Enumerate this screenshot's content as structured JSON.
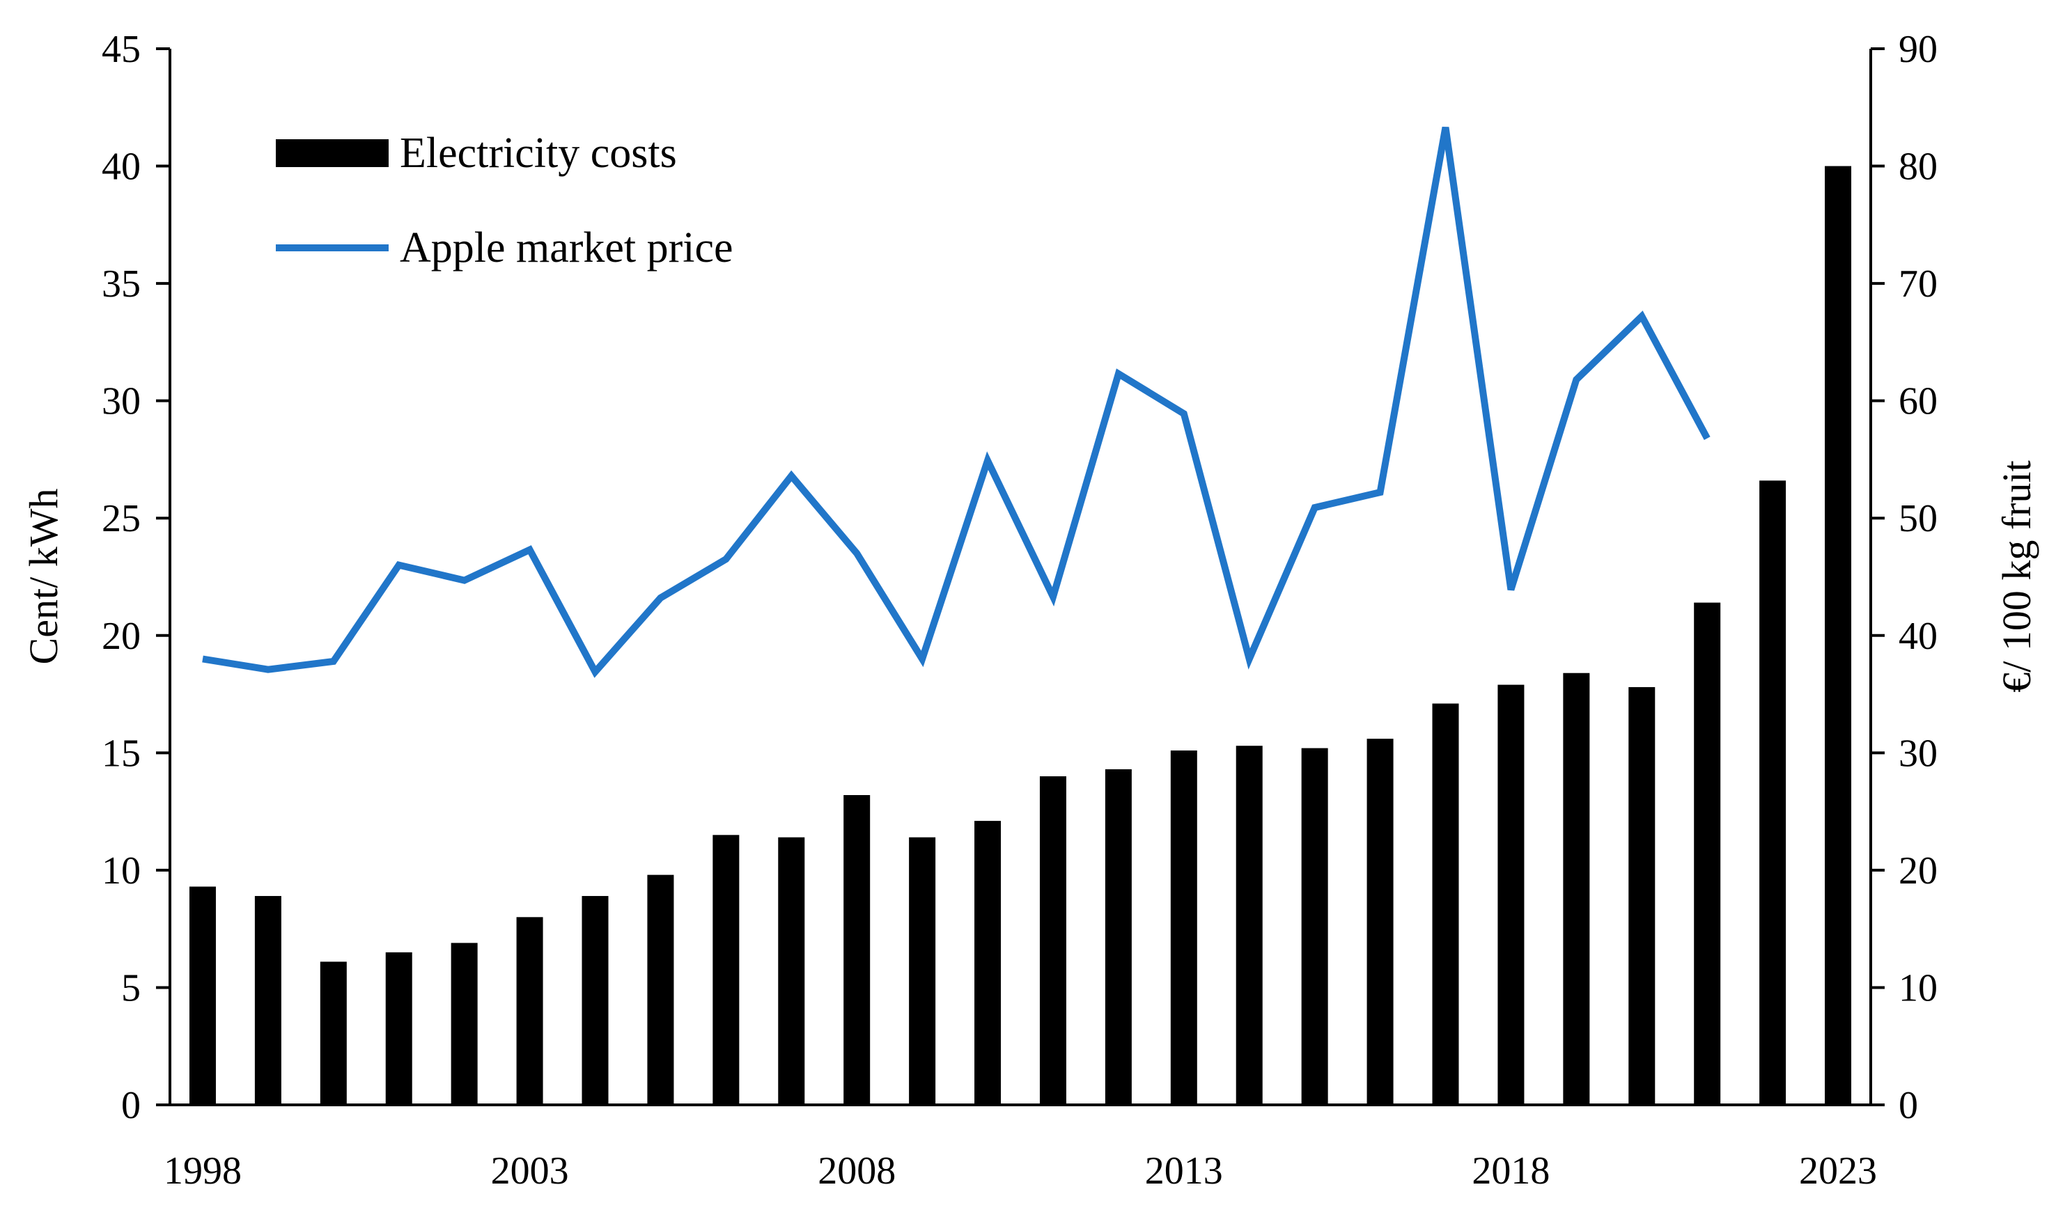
{
  "chart_data": {
    "type": "bar",
    "x": [
      1998,
      1999,
      2000,
      2001,
      2002,
      2003,
      2004,
      2005,
      2006,
      2007,
      2008,
      2009,
      2010,
      2011,
      2012,
      2013,
      2014,
      2015,
      2016,
      2017,
      2018,
      2019,
      2020,
      2021,
      2022,
      2023
    ],
    "x_tick_labels": [
      "1998",
      "2003",
      "2008",
      "2013",
      "2018",
      "2023"
    ],
    "x_tick_values": [
      1998,
      2003,
      2008,
      2013,
      2018,
      2023
    ],
    "ylabel": "Cent/ kWh",
    "ylabel_right": "€/ 100 kg fruit",
    "ylim": [
      0,
      45
    ],
    "ylim_right": [
      0,
      90
    ],
    "y_ticks": [
      0,
      5,
      10,
      15,
      20,
      25,
      30,
      35,
      40,
      45
    ],
    "y_ticks_right": [
      0,
      10,
      20,
      30,
      40,
      50,
      60,
      70,
      80,
      90
    ],
    "legend_position": "top-left",
    "grid": false,
    "series": [
      {
        "name": "Electricity costs",
        "type": "bar",
        "axis": "left",
        "color": "#000000",
        "values": [
          9.3,
          8.9,
          6.1,
          6.5,
          6.9,
          8.0,
          8.9,
          9.8,
          11.5,
          11.4,
          13.2,
          11.4,
          12.1,
          14.0,
          14.3,
          15.1,
          15.3,
          15.2,
          15.6,
          17.1,
          17.9,
          18.4,
          17.8,
          21.4,
          26.6,
          40.0
        ]
      },
      {
        "name": "Apple market price",
        "type": "line",
        "axis": "right",
        "color": "#2176c9",
        "values": [
          38.0,
          37.1,
          37.8,
          46.0,
          44.7,
          47.3,
          36.9,
          43.2,
          46.5,
          53.6,
          47.0,
          38.0,
          54.9,
          43.3,
          62.3,
          58.9,
          38.0,
          50.9,
          52.2,
          83.3,
          43.9,
          61.8,
          67.2,
          56.8,
          null,
          null
        ]
      }
    ]
  }
}
